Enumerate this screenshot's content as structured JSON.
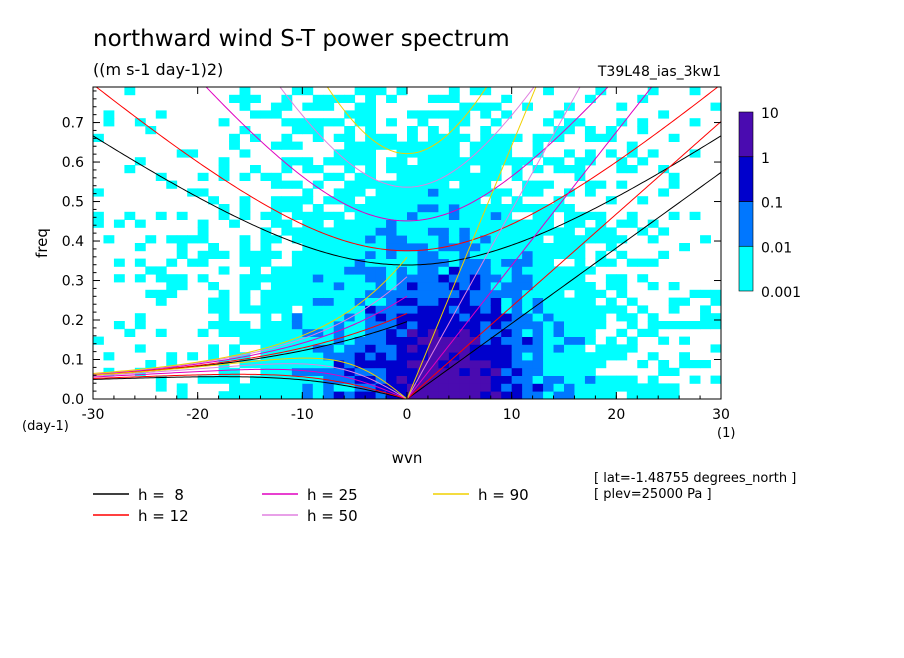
{
  "chart_data": {
    "type": "heatmap",
    "title": "northward wind S-T power spectrum",
    "subtitle": "((m s-1 day-1)2)",
    "run_label": "T39L48_ias_3kw1",
    "xlabel": "wvn",
    "ylabel": "freq",
    "x_unit_label": "(1)",
    "y_unit_label": "(day-1)",
    "xlim": [
      -30,
      30
    ],
    "ylim": [
      0,
      0.79
    ],
    "x_ticks": [
      -30,
      -20,
      -10,
      0,
      10,
      20,
      30
    ],
    "y_ticks": [
      0.0,
      0.1,
      0.2,
      0.3,
      0.4,
      0.5,
      0.6,
      0.7
    ],
    "x_tick_labels": [
      "-30",
      "-20",
      "-10",
      "0",
      "10",
      "20",
      "30"
    ],
    "y_tick_labels": [
      "0.0",
      "0.1",
      "0.2",
      "0.3",
      "0.4",
      "0.5",
      "0.6",
      "0.7"
    ],
    "colorbar": {
      "levels": [
        0.001,
        0.01,
        0.1,
        1,
        10
      ],
      "level_labels": [
        "0.001",
        "0.01",
        "0.1",
        "1",
        "10"
      ],
      "colors": [
        "#00ffff",
        "#0077ff",
        "#0000cc",
        "#4a0bb0"
      ]
    },
    "dispersion_curves": [
      {
        "label": "h =  8",
        "h": 8,
        "color": "#000000"
      },
      {
        "label": "h = 12",
        "h": 12,
        "color": "#ff0000"
      },
      {
        "label": "h = 25",
        "h": 25,
        "color": "#e000c0"
      },
      {
        "label": "h = 50",
        "h": 50,
        "color": "#e080e0"
      },
      {
        "label": "h = 90",
        "h": 90,
        "color": "#f0d000"
      }
    ],
    "annotations": [
      "[ lat=-1.48755 degrees_north ]",
      "[ plev=25000 Pa ]"
    ]
  }
}
